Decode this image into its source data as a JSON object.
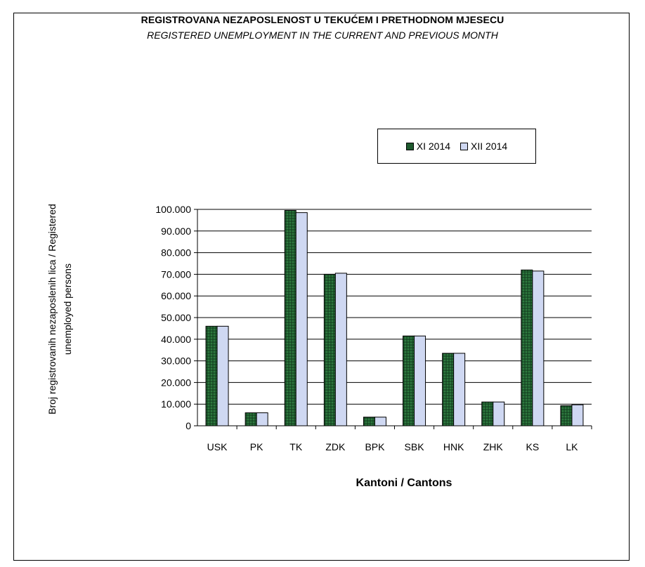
{
  "chart_data": {
    "type": "bar",
    "title": "REGISTROVANA NEZAPOSLENOST U TEKUĆEM I PRETHODNOM   MJESECU",
    "subtitle": "REGISTERED UNEMPLOYMENT IN THE CURRENT AND PREVIOUS MONTH",
    "xlabel": "Kantoni / Cantons",
    "ylabel_line1": "Broj registrovanih nezaposlenih lica / Registered",
    "ylabel_line2": "unemployed persons",
    "categories": [
      "USK",
      "PK",
      "TK",
      "ZDK",
      "BPK",
      "SBK",
      "HNK",
      "ZHK",
      "KS",
      "LK"
    ],
    "series": [
      {
        "name": "XI 2014",
        "color": "#1f5a2e",
        "values": [
          46000,
          6000,
          99500,
          70000,
          4000,
          41500,
          33500,
          11000,
          72000,
          9300
        ]
      },
      {
        "name": "XII 2014",
        "color": "#cfd8f2",
        "values": [
          46000,
          6000,
          98500,
          70500,
          4000,
          41500,
          33500,
          11000,
          71500,
          9700
        ]
      }
    ],
    "y_ticks": [
      "0",
      "10.000",
      "20.000",
      "30.000",
      "40.000",
      "50.000",
      "60.000",
      "70.000",
      "80.000",
      "90.000",
      "100.000"
    ],
    "ylim": [
      0,
      100000
    ],
    "grid": true,
    "legend_position": "top-right"
  }
}
